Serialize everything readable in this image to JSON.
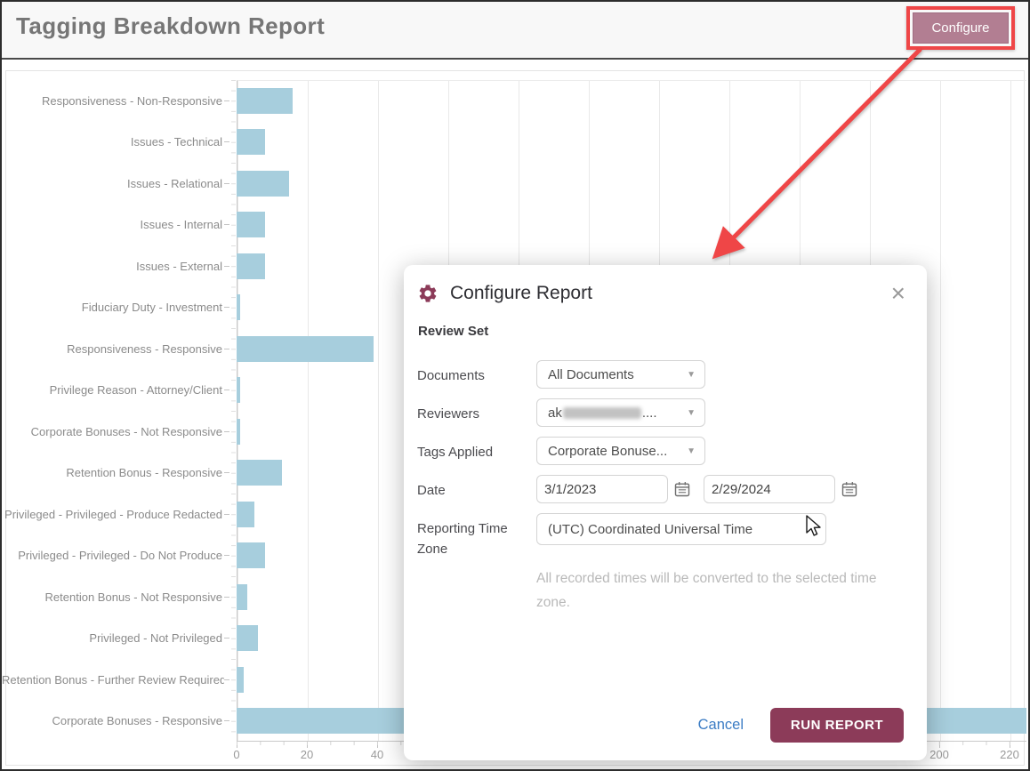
{
  "window": {
    "title": "Tagging Breakdown Report"
  },
  "header": {
    "configure_label": "Configure"
  },
  "chart_data": {
    "type": "bar",
    "orientation": "horizontal",
    "title": "Tagging Breakdown Report",
    "categories": [
      "Responsiveness - Non-Responsive",
      "Issues - Technical",
      "Issues - Relational",
      "Issues - Internal",
      "Issues - External",
      "Fiduciary Duty - Investment",
      "Responsiveness - Responsive",
      "Privilege Reason - Attorney/Client",
      "Corporate Bonuses - Not Responsive",
      "Retention Bonus - Responsive",
      "Privileged - Privileged - Produce Redacted",
      "Privileged - Privileged - Do Not Produce",
      "Retention Bonus - Not Responsive",
      "Privileged - Not Privileged",
      "Retention Bonus - Further Review Required",
      "Corporate Bonuses - Responsive"
    ],
    "values": [
      16,
      8,
      15,
      8,
      8,
      1,
      39,
      1,
      1,
      13,
      5,
      8,
      3,
      6,
      2,
      230
    ],
    "xlabel": "",
    "ylabel": "",
    "xlim": [
      0,
      225
    ],
    "x_tick_step": 20,
    "grid": true,
    "legend_position": "none",
    "bar_color": "#a7cedd",
    "note": "Last bar (Corporate Bonuses - Responsive) extends past the visible right edge beyond the 220 tick; middle x ticks are hidden behind the dialog."
  },
  "dialog": {
    "title": "Configure Report",
    "section_label": "Review Set",
    "fields": {
      "documents": {
        "label": "Documents",
        "value": "All Documents"
      },
      "reviewers": {
        "label": "Reviewers",
        "value_prefix": "ak",
        "value_suffix": "....",
        "redacted": true
      },
      "tags_applied": {
        "label": "Tags Applied",
        "value": "Corporate Bonuse..."
      },
      "date": {
        "label": "Date",
        "start_value": "3/1/2023",
        "end_value": "2/29/2024"
      },
      "timezone": {
        "label": "Reporting Time Zone",
        "value": "(UTC) Coordinated Universal Time",
        "helper": "All recorded times will be converted to the selected time zone."
      }
    },
    "cancel_label": "Cancel",
    "run_label": "RUN REPORT"
  },
  "colors": {
    "bar": "#a7cedd",
    "accent_maroon": "#8c3b59",
    "configure_button": "#b27e92",
    "annotation_red": "#ef4647",
    "link_blue": "#3b7cc4",
    "title_gray": "#767676"
  }
}
